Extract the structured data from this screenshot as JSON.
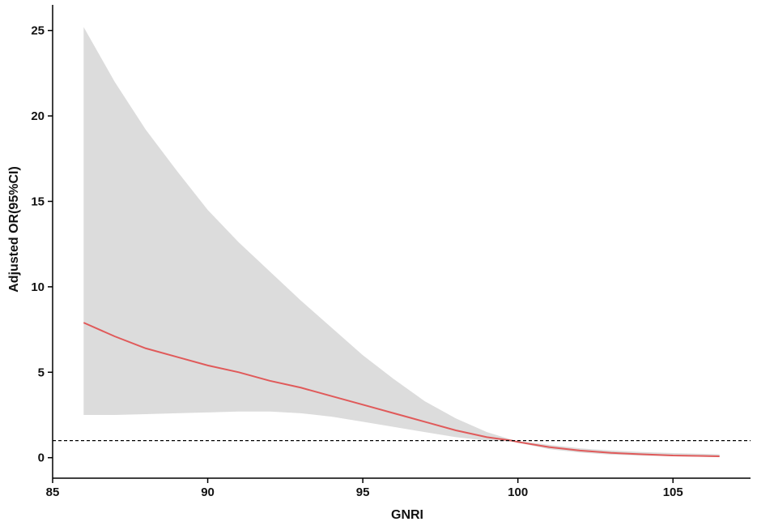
{
  "chart_data": {
    "type": "line",
    "title": "",
    "xlabel": "GNRI",
    "ylabel": "Adjusted OR(95%CI)",
    "xlim": [
      85,
      107.5
    ],
    "ylim": [
      -1.2,
      26.5
    ],
    "xticks": [
      85,
      90,
      95,
      100,
      105
    ],
    "yticks": [
      0,
      5,
      10,
      15,
      20,
      25
    ],
    "xtick_labels": [
      "85",
      "90",
      "95",
      "100",
      "105"
    ],
    "ytick_labels": [
      "0",
      "5",
      "10",
      "15",
      "20",
      "25"
    ],
    "reference_line": {
      "y": 1,
      "style": "dashed",
      "color": "#000000"
    },
    "grid": false,
    "legend": "none",
    "colors": {
      "line": "#e05a5a",
      "band": "#dcdcdc",
      "axis": "#000000"
    },
    "series": [
      {
        "x": [
          86,
          87,
          88,
          89,
          90,
          91,
          92,
          93,
          94,
          95,
          96,
          97,
          98,
          99,
          99.8,
          100,
          101,
          102,
          103,
          104,
          105,
          106,
          106.5
        ],
        "values": [
          7.9,
          7.1,
          6.4,
          5.9,
          5.4,
          5.0,
          4.5,
          4.1,
          3.6,
          3.1,
          2.6,
          2.1,
          1.6,
          1.2,
          1.0,
          0.92,
          0.62,
          0.42,
          0.28,
          0.2,
          0.13,
          0.1,
          0.08
        ],
        "upper": [
          25.2,
          22.0,
          19.2,
          16.8,
          14.5,
          12.6,
          10.9,
          9.2,
          7.6,
          6.0,
          4.6,
          3.3,
          2.3,
          1.5,
          1.05,
          0.98,
          0.75,
          0.55,
          0.42,
          0.33,
          0.27,
          0.22,
          0.2
        ],
        "lower": [
          2.5,
          2.5,
          2.55,
          2.6,
          2.65,
          2.7,
          2.7,
          2.6,
          2.4,
          2.1,
          1.8,
          1.5,
          1.2,
          1.0,
          0.95,
          0.88,
          0.5,
          0.3,
          0.18,
          0.12,
          0.08,
          0.05,
          0.03
        ]
      }
    ]
  }
}
